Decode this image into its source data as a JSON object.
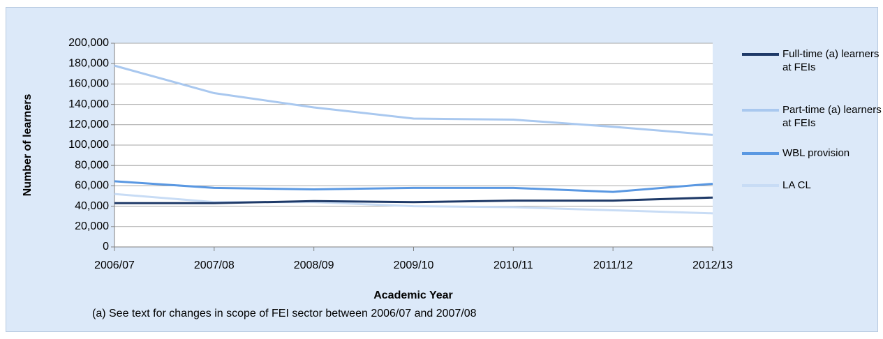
{
  "chart_data": {
    "type": "line",
    "x_label": "Academic Year",
    "y_label": "Number of learners",
    "note": "(a) See text for changes in scope of FEI sector between 2006/07 and 2007/08",
    "categories": [
      "2006/07",
      "2007/08",
      "2008/09",
      "2009/10",
      "2010/11",
      "2011/12",
      "2012/13"
    ],
    "series": [
      {
        "name": "Full-time (a) learners at FEIs",
        "color": "#1f3a68",
        "values": [
          43000,
          43000,
          45000,
          44000,
          45500,
          45500,
          48500
        ]
      },
      {
        "name": "Part-time (a) learners at FEIs",
        "color": "#a9c8ef",
        "values": [
          178000,
          151000,
          137000,
          126000,
          125000,
          118000,
          110000
        ]
      },
      {
        "name": "WBL provision",
        "color": "#5a98e2",
        "values": [
          64500,
          58000,
          56500,
          58000,
          58000,
          54000,
          62000
        ]
      },
      {
        "name": "LA CL",
        "color": "#c8dcf5",
        "values": [
          52000,
          44000,
          44000,
          40000,
          39000,
          36000,
          33000
        ]
      }
    ],
    "ylim": [
      0,
      200000
    ],
    "yticks": [
      0,
      {
        "value": 20000,
        "label": "20,000"
      },
      {
        "value": 40000,
        "label": "40,000"
      },
      {
        "value": 60000,
        "label": "60,000"
      },
      {
        "value": 80000,
        "label": "80,000"
      },
      {
        "value": 100000,
        "label": "100,000"
      },
      {
        "value": 120000,
        "label": "120,000"
      },
      {
        "value": 140000,
        "label": "140,000"
      },
      {
        "value": 160000,
        "label": "160,000"
      },
      {
        "value": 180000,
        "label": "180,000"
      },
      {
        "value": 200000,
        "label": "200,000"
      }
    ],
    "grid": true
  }
}
